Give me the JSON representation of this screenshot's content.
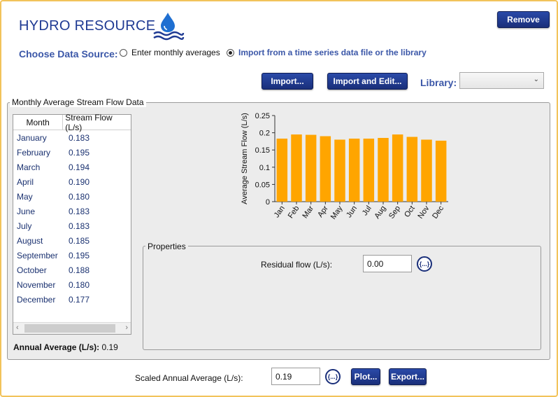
{
  "header": {
    "title": "HYDRO RESOURCE",
    "remove_label": "Remove"
  },
  "data_source": {
    "label": "Choose Data Source:",
    "options": [
      {
        "label": "Enter monthly averages",
        "selected": false
      },
      {
        "label": "Import from a time series data file or the library",
        "selected": true
      }
    ]
  },
  "toolbar": {
    "import_label": "Import...",
    "import_edit_label": "Import and Edit...",
    "library_label": "Library:",
    "library_value": ""
  },
  "monthly": {
    "group_title": "Monthly Average Stream Flow Data",
    "columns": [
      "Month",
      "Stream Flow (L/s)"
    ],
    "rows": [
      {
        "month": "January",
        "value": "0.183"
      },
      {
        "month": "February",
        "value": "0.195"
      },
      {
        "month": "March",
        "value": "0.194"
      },
      {
        "month": "April",
        "value": "0.190"
      },
      {
        "month": "May",
        "value": "0.180"
      },
      {
        "month": "June",
        "value": "0.183"
      },
      {
        "month": "July",
        "value": "0.183"
      },
      {
        "month": "August",
        "value": "0.185"
      },
      {
        "month": "September",
        "value": "0.195"
      },
      {
        "month": "October",
        "value": "0.188"
      },
      {
        "month": "November",
        "value": "0.180"
      },
      {
        "month": "December",
        "value": "0.177"
      }
    ],
    "annual_label": "Annual Average (L/s):",
    "annual_value": "0.19"
  },
  "chart_data": {
    "type": "bar",
    "categories": [
      "Jan",
      "Feb",
      "Mar",
      "Apr",
      "May",
      "Jun",
      "Jul",
      "Aug",
      "Sep",
      "Oct",
      "Nov",
      "Dec"
    ],
    "values": [
      0.183,
      0.195,
      0.194,
      0.19,
      0.18,
      0.183,
      0.183,
      0.185,
      0.195,
      0.188,
      0.18,
      0.177
    ],
    "ylabel": "Average Stream Flow (L/s)",
    "ylim": [
      0,
      0.25
    ],
    "yticks": [
      "0",
      "0.05",
      "0.1",
      "0.15",
      "0.2",
      "0.25"
    ],
    "bar_color": "#ffa500"
  },
  "properties": {
    "title": "Properties",
    "residual_label": "Residual flow (L/s):",
    "residual_value": "0.00",
    "expr_label": "{...}"
  },
  "footer": {
    "scaled_label": "Scaled Annual Average (L/s):",
    "scaled_value": "0.19",
    "expr_label": "{...}",
    "plot_label": "Plot...",
    "export_label": "Export..."
  },
  "colors": {
    "accent": "#1f3a93",
    "button": "#1a2f7a",
    "frame": "#f2c35b"
  }
}
